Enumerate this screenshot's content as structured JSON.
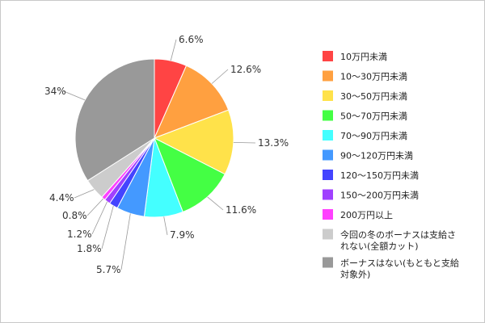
{
  "chart_data": {
    "type": "pie",
    "title": "",
    "legend_position": "right",
    "slices": [
      {
        "name": "10万円未満",
        "value": 6.6,
        "label": "6.6%",
        "color": "#ff4444"
      },
      {
        "name": "10〜30万円未満",
        "value": 12.6,
        "label": "12.6%",
        "color": "#ffa040"
      },
      {
        "name": "30〜50万円未満",
        "value": 13.3,
        "label": "13.3%",
        "color": "#ffe24a"
      },
      {
        "name": "50〜70万円未満",
        "value": 11.6,
        "label": "11.6%",
        "color": "#44ff44"
      },
      {
        "name": "70〜90万円未満",
        "value": 7.9,
        "label": "7.9%",
        "color": "#44ffff"
      },
      {
        "name": "90〜120万円未満",
        "value": 5.7,
        "label": "5.7%",
        "color": "#4499ff"
      },
      {
        "name": "120〜150万円未満",
        "value": 1.8,
        "label": "1.8%",
        "color": "#4444ff"
      },
      {
        "name": "150〜200万円未満",
        "value": 1.2,
        "label": "1.2%",
        "color": "#a040ff"
      },
      {
        "name": "200万円以上",
        "value": 0.8,
        "label": "0.8%",
        "color": "#ff40ff"
      },
      {
        "name": "今回の冬のボーナスは支給されない(全額カット)",
        "value": 4.4,
        "label": "4.4%",
        "color": "#cccccc"
      },
      {
        "name": "ボーナスはない(もともと支給対象外)",
        "value": 34,
        "label": "34%",
        "color": "#999999"
      }
    ],
    "legend": [
      {
        "lines": [
          "10万円未満"
        ]
      },
      {
        "lines": [
          "10〜30万円未満"
        ]
      },
      {
        "lines": [
          "30〜50万円未満"
        ]
      },
      {
        "lines": [
          "50〜70万円未満"
        ]
      },
      {
        "lines": [
          "70〜90万円未満"
        ]
      },
      {
        "lines": [
          "90〜120万円未満"
        ]
      },
      {
        "lines": [
          "120〜150万円未満"
        ]
      },
      {
        "lines": [
          "150〜200万円未満"
        ]
      },
      {
        "lines": [
          "200万円以上"
        ]
      },
      {
        "lines": [
          "今回の冬のボーナスは支給さ",
          "れない(全額カット)"
        ]
      },
      {
        "lines": [
          "ボーナスはない(もともと支給",
          "対象外)"
        ]
      }
    ]
  }
}
